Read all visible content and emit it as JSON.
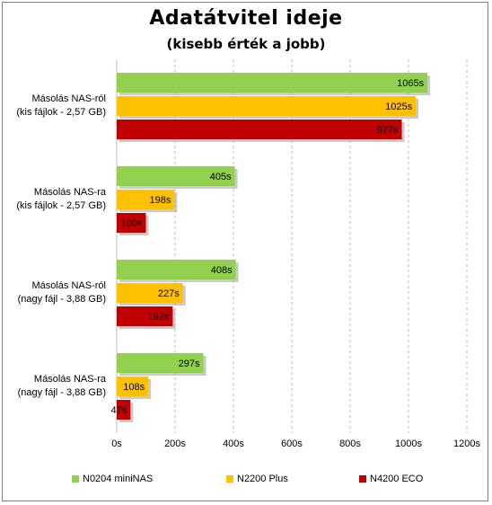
{
  "chart_data": {
    "type": "bar",
    "orientation": "horizontal",
    "title": "Adatátvitel ideje",
    "subtitle": "(kisebb érték a jobb)",
    "categories": [
      [
        "Másolás NAS-ról",
        "(kis fájlok - 2,57 GB)"
      ],
      [
        "Másolás NAS-ra",
        "(kis fájlok - 2,57 GB)"
      ],
      [
        "Másolás NAS-ról",
        "(nagy fájl - 3,88 GB)"
      ],
      [
        "Másolás NAS-ra",
        "(nagy fájl - 3,88 GB)"
      ]
    ],
    "series": [
      {
        "name": "N0204 miniNAS",
        "color": "#92d050",
        "values": [
          1065,
          405,
          408,
          297
        ]
      },
      {
        "name": "N2200 Plus",
        "color": "#ffc000",
        "values": [
          1025,
          198,
          227,
          108
        ]
      },
      {
        "name": "N4200 ECO",
        "color": "#c00000",
        "values": [
          977,
          100,
          192,
          47
        ]
      }
    ],
    "value_suffix": "s",
    "xlim": [
      0,
      1200
    ],
    "x_ticks": [
      "0s",
      "200s",
      "400s",
      "600s",
      "800s",
      "1000s",
      "1200s"
    ],
    "grid": true,
    "legend_position": "bottom"
  }
}
